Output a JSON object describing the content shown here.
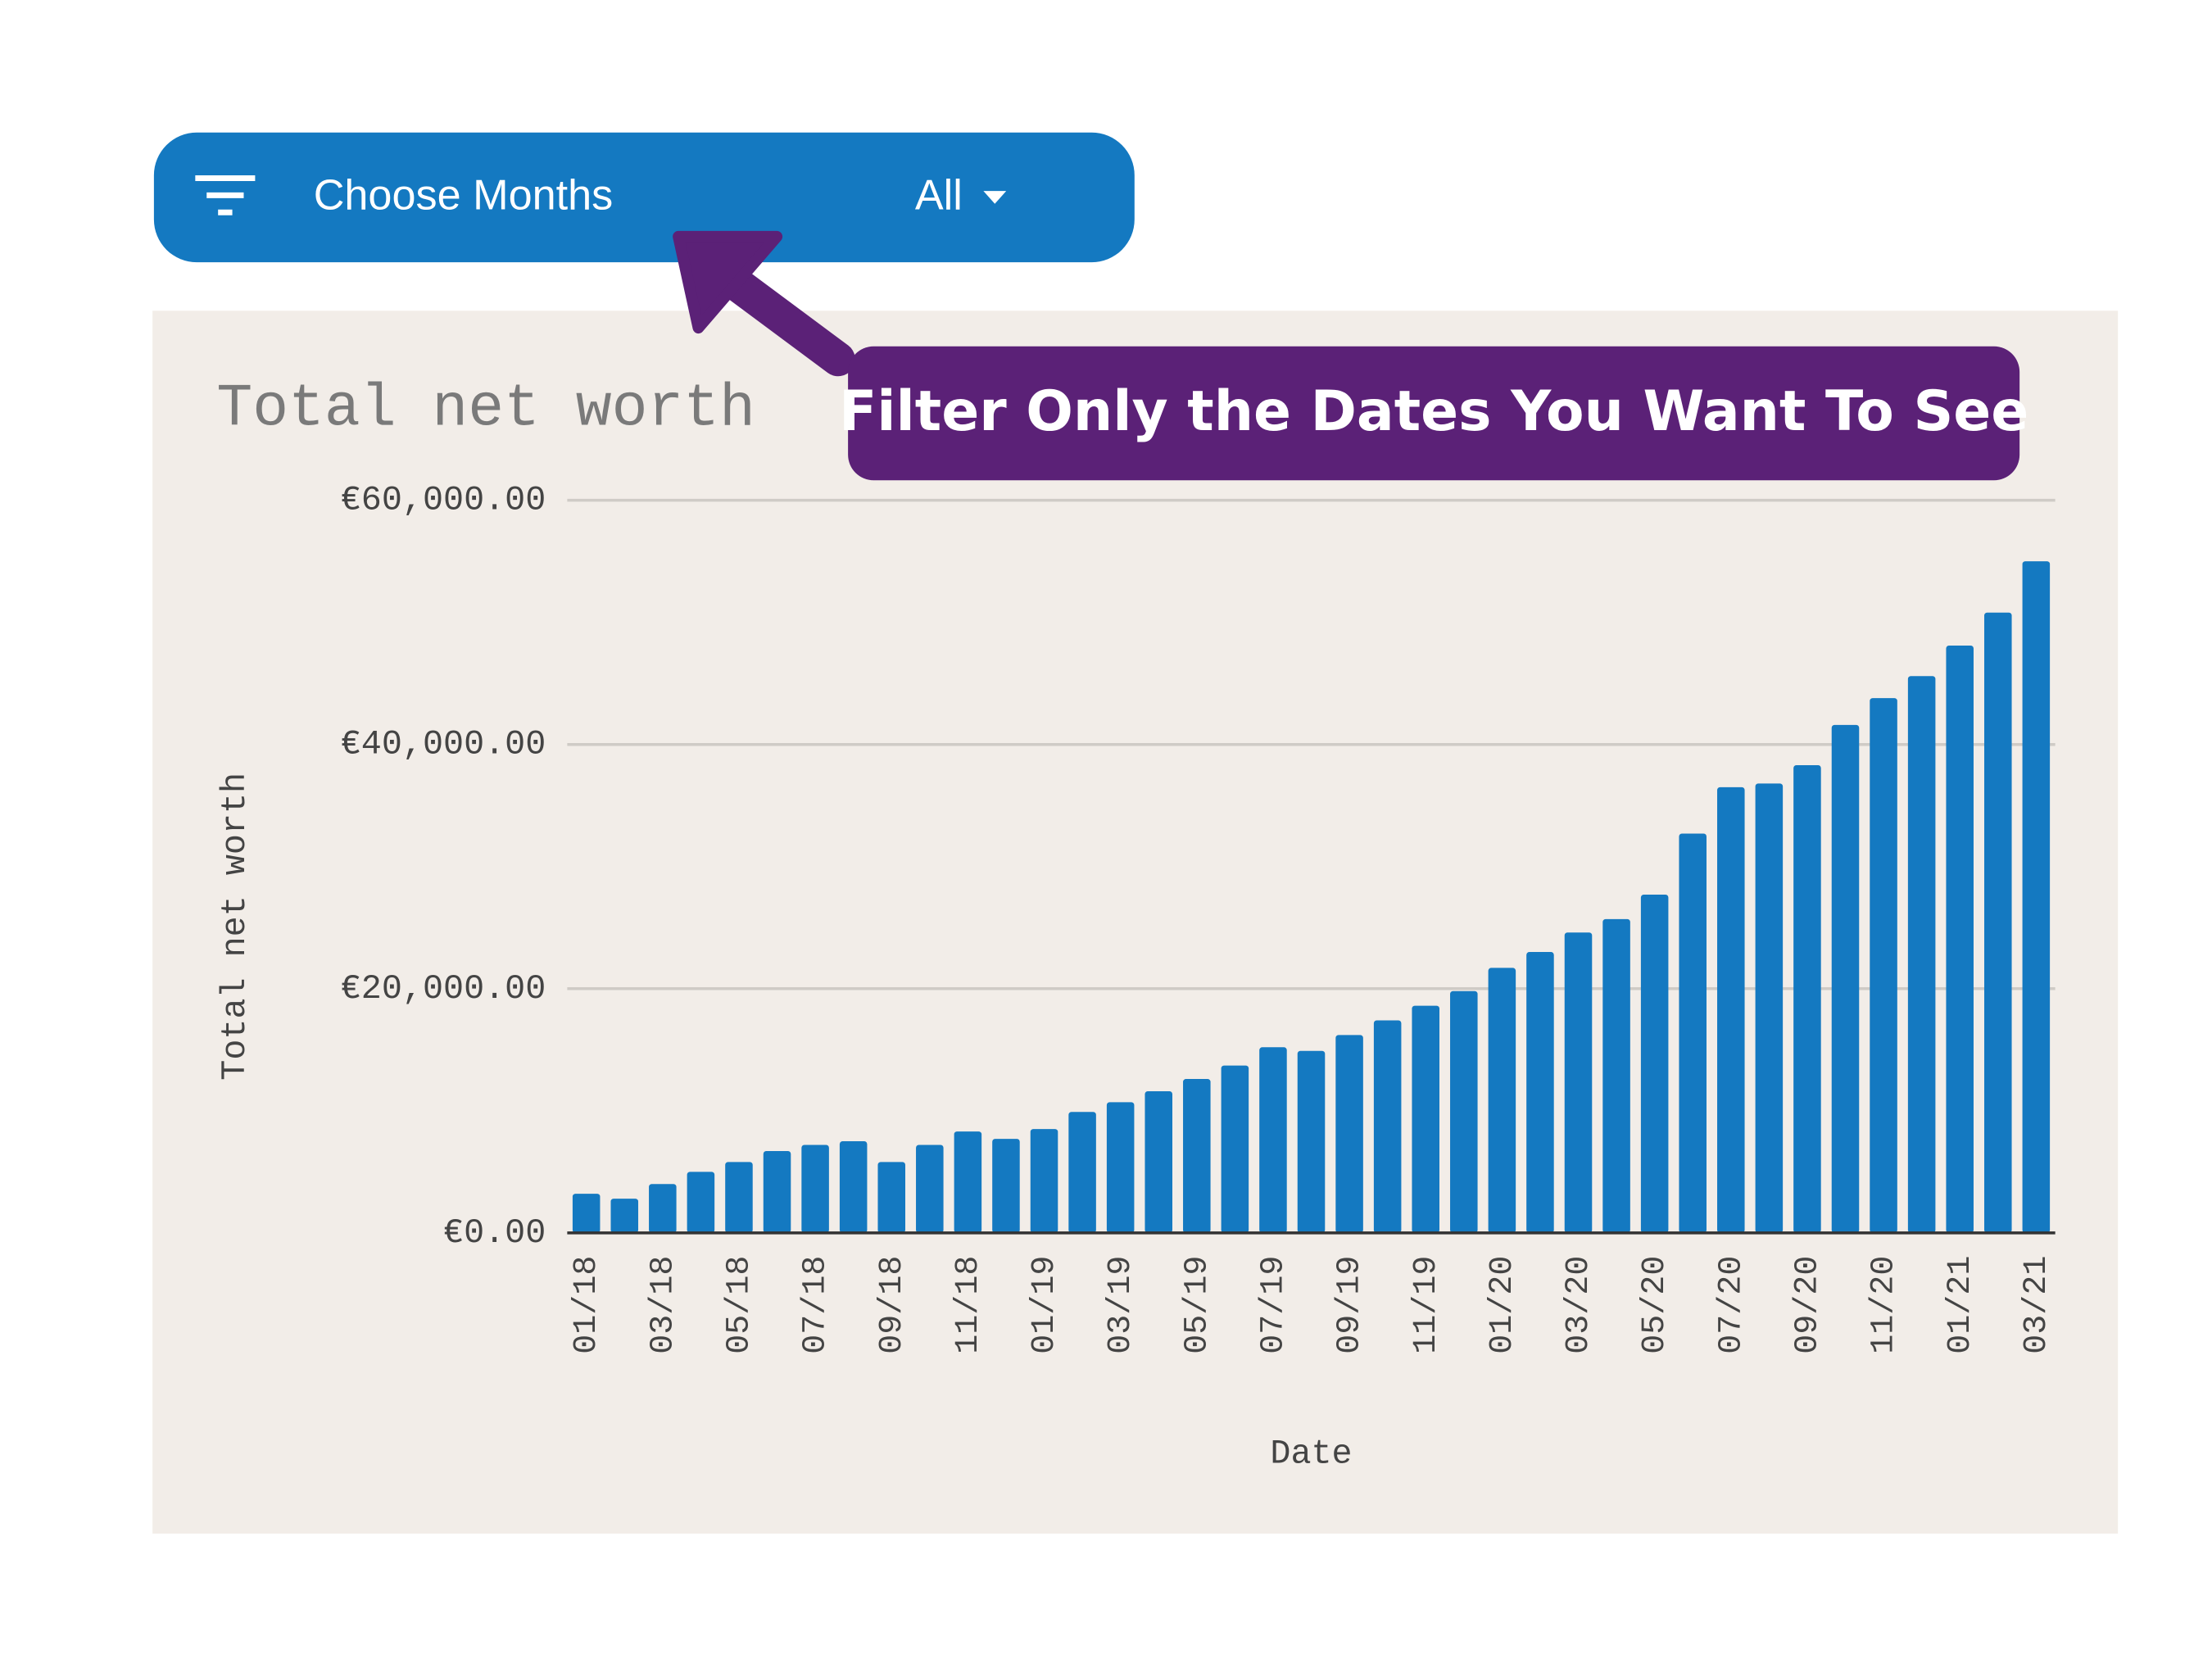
{
  "filter": {
    "label": "Choose Months",
    "value": "All"
  },
  "annotation": "Filter Only the Dates You Want To See",
  "chart_data": {
    "type": "bar",
    "title": "Total net worth",
    "x_label": "Date",
    "y_label": "Total net worth",
    "categories": [
      "01/18",
      null,
      "03/18",
      null,
      "05/18",
      null,
      "07/18",
      null,
      "09/18",
      null,
      "11/18",
      null,
      "01/19",
      null,
      "03/19",
      null,
      "05/19",
      null,
      "07/19",
      null,
      "09/19",
      null,
      "11/19",
      null,
      "01/20",
      null,
      "03/20",
      null,
      "05/20",
      null,
      "07/20",
      null,
      "09/20",
      null,
      "11/20",
      null,
      "01/21",
      null,
      "03/21"
    ],
    "values": [
      3200,
      2800,
      4000,
      5000,
      5800,
      6700,
      7200,
      7500,
      5800,
      7200,
      8300,
      7700,
      8500,
      9900,
      10700,
      11600,
      12600,
      13700,
      15200,
      14900,
      16200,
      17400,
      18600,
      19800,
      21700,
      23000,
      24600,
      25700,
      27700,
      32700,
      36500,
      36800,
      38300,
      41600,
      43800,
      45600,
      48100,
      50800,
      55000
    ],
    "color": "#1479c1",
    "ylim": [
      0,
      60000
    ],
    "yticks": [
      {
        "value": 0,
        "label": "€0.00"
      },
      {
        "value": 20000,
        "label": "€20,000.00"
      },
      {
        "value": 40000,
        "label": "€40,000.00"
      },
      {
        "value": 60000,
        "label": "€60,000.00"
      }
    ],
    "grid": true
  }
}
